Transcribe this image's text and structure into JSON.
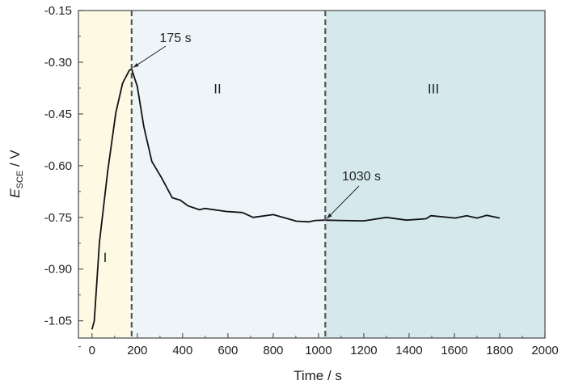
{
  "chart_data": {
    "type": "line",
    "xlabel": "Time / s",
    "ylabel": {
      "main": "E",
      "subscript": "SCE",
      "unit": " / V"
    },
    "xlim": [
      -60,
      2000
    ],
    "ylim": [
      -1.1,
      -0.15
    ],
    "xticks": [
      0,
      200,
      400,
      600,
      800,
      1000,
      1200,
      1400,
      1600,
      1800,
      2000
    ],
    "yticks": [
      -0.15,
      -0.3,
      -0.45,
      -0.6,
      -0.75,
      -0.9,
      -1.05
    ],
    "ytick_labels": [
      "-0.15",
      "-0.30",
      "-0.45",
      "-0.60",
      "-0.75",
      "-0.90",
      "-1.05"
    ],
    "grid": false,
    "regions": [
      {
        "label": "I",
        "from": -60,
        "to": 175,
        "color": "#fcfae3"
      },
      {
        "label": "II",
        "from": 175,
        "to": 1030,
        "color": "#eef5f8"
      },
      {
        "label": "III",
        "from": 1030,
        "to": 2000,
        "color": "#d5e9ed"
      }
    ],
    "region_label_y": {
      "I": -0.88,
      "II": -0.39,
      "III": -0.39
    },
    "annotations": [
      {
        "text": "175 s",
        "x": 175,
        "y": -0.32
      },
      {
        "text": "1030 s",
        "x": 1030,
        "y": -0.758
      }
    ],
    "series": [
      {
        "color": "#111111",
        "x": [
          0,
          10,
          33,
          69,
          105,
          135,
          165,
          175,
          200,
          229,
          264,
          307,
          354,
          390,
          425,
          475,
          497,
          593,
          664,
          711,
          800,
          903,
          957,
          986,
          1030,
          1093,
          1200,
          1300,
          1389,
          1475,
          1496,
          1604,
          1654,
          1700,
          1743,
          1800
        ],
        "y": [
          -1.075,
          -1.05,
          -0.822,
          -0.618,
          -0.447,
          -0.361,
          -0.323,
          -0.32,
          -0.37,
          -0.487,
          -0.588,
          -0.635,
          -0.693,
          -0.7,
          -0.717,
          -0.728,
          -0.724,
          -0.733,
          -0.736,
          -0.75,
          -0.742,
          -0.761,
          -0.763,
          -0.759,
          -0.758,
          -0.759,
          -0.76,
          -0.75,
          -0.758,
          -0.754,
          -0.745,
          -0.752,
          -0.745,
          -0.752,
          -0.744,
          -0.752
        ]
      }
    ]
  }
}
